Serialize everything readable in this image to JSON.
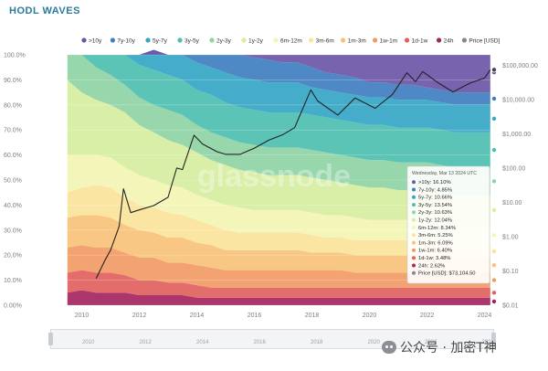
{
  "page": {
    "title": "HODL WAVES"
  },
  "watermark": {
    "text": "glassnode",
    "wechat": "公众号 · 加密T神"
  },
  "colors": {
    "gt10y": "#6d56a8",
    "y7_10": "#3f7fc0",
    "y5_7": "#35a6c4",
    "y3_5": "#4dbfb1",
    "y2_3": "#8fd3a5",
    "y1_2": "#d6eea0",
    "m6_12": "#f3f5b3",
    "m3_6": "#fbe39a",
    "m1_3": "#f9c27a",
    "w1_m1": "#f29a65",
    "d1_w1": "#e0615e",
    "h24": "#a3255f",
    "price": "#222222",
    "tick": "#7a8088",
    "grid": "#e6e8ec"
  },
  "legend": [
    {
      "key": "gt10y",
      "label": ">10y",
      "color": "#6d56a8"
    },
    {
      "key": "y7_10",
      "label": "7y-10y",
      "color": "#3f7fc0"
    },
    {
      "key": "y5_7",
      "label": "5y-7y",
      "color": "#35a6c4"
    },
    {
      "key": "y3_5",
      "label": "3y-5y",
      "color": "#4dbfb1"
    },
    {
      "key": "y2_3",
      "label": "2y-3y",
      "color": "#8fd3a5"
    },
    {
      "key": "y1_2",
      "label": "1y-2y",
      "color": "#d6eea0"
    },
    {
      "key": "m6_12",
      "label": "6m-12m",
      "color": "#f3f5b3"
    },
    {
      "key": "m3_6",
      "label": "3m-6m",
      "color": "#fbe39a"
    },
    {
      "key": "m1_3",
      "label": "1m-3m",
      "color": "#f9c27a"
    },
    {
      "key": "w1_m1",
      "label": "1w-1m",
      "color": "#f29a65"
    },
    {
      "key": "d1_w1",
      "label": "1d-1w",
      "color": "#e0615e"
    },
    {
      "key": "h24",
      "label": "24h",
      "color": "#a3255f"
    },
    {
      "key": "price",
      "label": "Price [USD]",
      "color": "#888888"
    }
  ],
  "tooltip": {
    "date": "Wednesday, Mar 13 2024 UTC",
    "rows": [
      {
        "label": ">10y: 16.10%",
        "color": "#6d56a8"
      },
      {
        "label": "7y-10y: 4.85%",
        "color": "#3f7fc0"
      },
      {
        "label": "5y-7y: 10.66%",
        "color": "#35a6c4"
      },
      {
        "label": "3y-5y: 13.54%",
        "color": "#4dbfb1"
      },
      {
        "label": "2y-3y: 10.63%",
        "color": "#8fd3a5"
      },
      {
        "label": "1y-2y: 12.04%",
        "color": "#d6eea0"
      },
      {
        "label": "6m-12m: 8.34%",
        "color": "#f3f5b3"
      },
      {
        "label": "3m-6m: 5.25%",
        "color": "#fbe39a"
      },
      {
        "label": "1m-3m: 6.09%",
        "color": "#f9c27a"
      },
      {
        "label": "1w-1m: 6.40%",
        "color": "#f29a65"
      },
      {
        "label": "1d-1w: 3.48%",
        "color": "#e0615e"
      },
      {
        "label": "24h: 2.62%",
        "color": "#a3255f"
      },
      {
        "label": "Price [USD]: $73,104.50",
        "color": "#888888"
      }
    ]
  },
  "navigator": {
    "years": [
      "2010",
      "2012",
      "2014",
      "2016",
      "2018",
      "2020",
      "2022",
      "2024"
    ]
  },
  "chart_data": {
    "type": "area",
    "stacked": true,
    "title": "HODL WAVES",
    "xlim": [
      2009.0,
      2024.3
    ],
    "ylim": [
      0,
      100
    ],
    "y_unit": "%",
    "y_ticks": [
      "0.00%",
      "10.0%",
      "20.0%",
      "30.0%",
      "40.0%",
      "50.0%",
      "60.0%",
      "70.0%",
      "80.0%",
      "90.0%",
      "100.0%"
    ],
    "x_ticks": [
      "2010",
      "2012",
      "2014",
      "2016",
      "2018",
      "2020",
      "2022",
      "2024"
    ],
    "y2_scale": "log",
    "y2_ticks": [
      "$0.01",
      "$0.10",
      "$1.00",
      "$10.00",
      "$100.00",
      "$1,000.00",
      "$10,000.00",
      "$100,000.00"
    ],
    "legend_position": "top",
    "grid": true,
    "x": [
      2009.5,
      2010,
      2010.5,
      2011,
      2011.5,
      2012,
      2012.5,
      2013,
      2013.5,
      2014,
      2014.5,
      2015,
      2015.5,
      2016,
      2016.5,
      2017,
      2017.5,
      2018,
      2018.5,
      2019,
      2019.5,
      2020,
      2020.5,
      2021,
      2021.5,
      2022,
      2022.5,
      2023,
      2023.5,
      2024,
      2024.2
    ],
    "series": [
      {
        "name": "24h",
        "values": [
          5,
          6,
          5,
          5,
          5,
          4,
          4,
          4,
          4,
          3,
          3,
          3,
          3,
          3,
          3,
          3,
          3,
          3,
          3,
          3,
          3,
          3,
          3,
          3,
          3,
          3,
          3,
          3,
          3,
          3,
          3
        ]
      },
      {
        "name": "1d-1w",
        "values": [
          8,
          8,
          8,
          8,
          7,
          6,
          6,
          5,
          5,
          5,
          4,
          4,
          4,
          4,
          4,
          4,
          4,
          4,
          4,
          4,
          4,
          4,
          4,
          4,
          4,
          4,
          4,
          4,
          4,
          4,
          4
        ]
      },
      {
        "name": "1w-1m",
        "values": [
          10,
          10,
          10,
          10,
          9,
          9,
          9,
          8,
          8,
          8,
          8,
          7,
          7,
          7,
          7,
          7,
          7,
          7,
          7,
          7,
          6,
          6,
          6,
          6,
          6,
          6,
          6,
          6,
          6,
          6,
          6
        ]
      },
      {
        "name": "1m-3m",
        "values": [
          12,
          12,
          13,
          12,
          11,
          11,
          10,
          10,
          10,
          9,
          9,
          8,
          8,
          8,
          8,
          8,
          8,
          7,
          7,
          7,
          7,
          7,
          7,
          7,
          7,
          7,
          6,
          6,
          6,
          6,
          6
        ]
      },
      {
        "name": "3m-6m",
        "values": [
          10,
          11,
          12,
          12,
          11,
          10,
          10,
          10,
          9,
          9,
          8,
          8,
          7,
          7,
          7,
          7,
          7,
          7,
          6,
          6,
          6,
          6,
          6,
          6,
          6,
          6,
          6,
          5,
          5,
          5,
          5
        ]
      },
      {
        "name": "6m-12m",
        "values": [
          15,
          13,
          12,
          12,
          12,
          12,
          11,
          11,
          11,
          10,
          10,
          10,
          10,
          9,
          9,
          9,
          9,
          9,
          9,
          9,
          9,
          8,
          8,
          8,
          8,
          8,
          8,
          8,
          8,
          8,
          8
        ]
      },
      {
        "name": "1y-2y",
        "values": [
          30,
          25,
          22,
          21,
          22,
          20,
          19,
          18,
          17,
          17,
          16,
          16,
          15,
          15,
          14,
          14,
          14,
          14,
          14,
          13,
          13,
          13,
          13,
          12,
          12,
          12,
          12,
          12,
          12,
          12,
          12
        ]
      },
      {
        "name": "2y-3y",
        "values": [
          10,
          15,
          13,
          12,
          11,
          11,
          11,
          12,
          12,
          11,
          11,
          11,
          11,
          11,
          11,
          11,
          11,
          11,
          11,
          11,
          11,
          11,
          11,
          11,
          11,
          11,
          11,
          11,
          11,
          11,
          11
        ]
      },
      {
        "name": "3y-5y",
        "values": [
          0,
          0,
          5,
          8,
          12,
          13,
          14,
          14,
          14,
          14,
          15,
          14,
          14,
          14,
          14,
          14,
          14,
          14,
          14,
          14,
          14,
          14,
          14,
          14,
          14,
          14,
          14,
          14,
          14,
          14,
          14
        ]
      },
      {
        "name": "5y-7y",
        "values": [
          0,
          0,
          0,
          0,
          0,
          4,
          8,
          8,
          10,
          11,
          11,
          12,
          12,
          12,
          12,
          12,
          12,
          11,
          11,
          11,
          11,
          11,
          11,
          11,
          11,
          11,
          11,
          11,
          11,
          11,
          11
        ]
      },
      {
        "name": "7y-10y",
        "values": [
          0,
          0,
          0,
          0,
          0,
          0,
          0,
          0,
          0,
          3,
          5,
          7,
          9,
          9,
          9,
          8,
          8,
          8,
          7,
          7,
          7,
          6,
          6,
          6,
          6,
          5,
          5,
          5,
          5,
          5,
          5
        ]
      },
      {
        "name": ">10y",
        "values": [
          0,
          0,
          0,
          0,
          1,
          0,
          0,
          0,
          0,
          0,
          0,
          0,
          0,
          1,
          1,
          3,
          3,
          5,
          7,
          8,
          9,
          11,
          12,
          13,
          14,
          15,
          16,
          16,
          16,
          16,
          16
        ]
      }
    ],
    "price_series": {
      "name": "Price [USD]",
      "x": [
        2010.5,
        2010.8,
        2011.0,
        2011.3,
        2011.45,
        2011.7,
        2012.0,
        2012.5,
        2013.0,
        2013.3,
        2013.5,
        2013.9,
        2014.2,
        2014.7,
        2015.0,
        2015.5,
        2016.0,
        2016.5,
        2017.0,
        2017.4,
        2017.96,
        2018.2,
        2018.9,
        2019.5,
        2020.2,
        2020.8,
        2021.3,
        2021.6,
        2021.85,
        2022.4,
        2022.9,
        2023.5,
        2024.0,
        2024.2
      ],
      "y": [
        0.06,
        0.2,
        0.4,
        2.0,
        25,
        5,
        6,
        8,
        14,
        100,
        90,
        900,
        500,
        300,
        250,
        250,
        380,
        650,
        950,
        1500,
        19000,
        9000,
        3500,
        11000,
        5500,
        14000,
        60000,
        33000,
        65000,
        30000,
        16500,
        30000,
        42000,
        73104.5
      ]
    }
  }
}
